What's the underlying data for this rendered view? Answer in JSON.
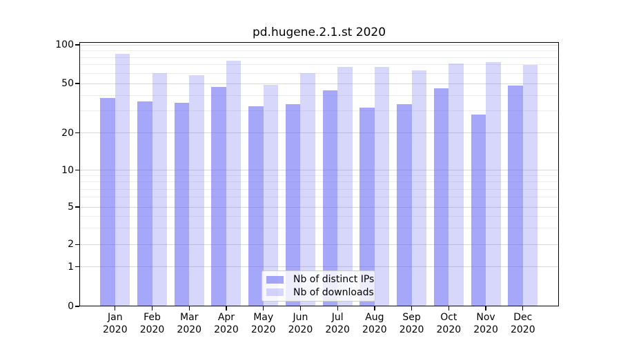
{
  "chart_data": {
    "type": "bar",
    "title": "pd.hugene.2.1.st 2020",
    "categories": [
      "Jan",
      "Feb",
      "Mar",
      "Apr",
      "May",
      "Jun",
      "Jul",
      "Aug",
      "Sep",
      "Oct",
      "Nov",
      "Dec"
    ],
    "category_year": "2020",
    "series": [
      {
        "name": "Nb of distinct IPs",
        "color": "rgba(95,95,245,0.55)",
        "values": [
          38,
          36,
          35,
          47,
          33,
          34,
          44,
          32,
          34,
          46,
          28,
          48
        ]
      },
      {
        "name": "Nb of downloads",
        "color": "rgba(95,95,245,0.25)",
        "values": [
          85,
          60,
          58,
          75,
          49,
          60,
          67,
          67,
          63,
          72,
          73,
          70
        ]
      }
    ],
    "y_axis": {
      "scale": "symlog",
      "tick_labels": [
        "100",
        "50",
        "20",
        "10",
        "5",
        "2",
        "1",
        "0"
      ],
      "tick_values": [
        100,
        50,
        20,
        10,
        5,
        2,
        1,
        0
      ],
      "minor_gridline_values": [
        3,
        4,
        6,
        7,
        8,
        9,
        30,
        40,
        60,
        70,
        80,
        90
      ],
      "range": [
        0,
        105
      ]
    },
    "legend": {
      "position": "lower-center",
      "entries": [
        "Nb of distinct IPs",
        "Nb of downloads"
      ]
    },
    "colors": {
      "bar_base": "#5f5ff5",
      "grid_major": "#d8d8d8",
      "grid_minor": "#ececec",
      "spine": "#000000",
      "background": "#ffffff"
    },
    "grid": true
  }
}
